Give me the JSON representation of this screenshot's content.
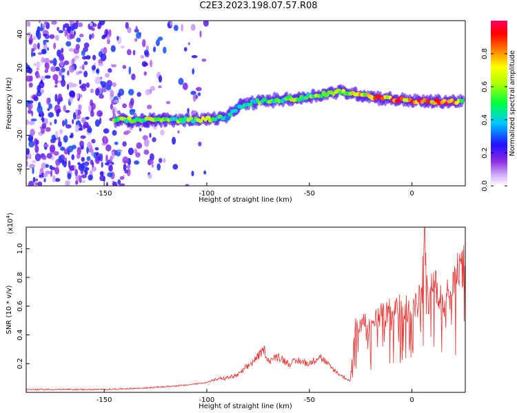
{
  "title": "C2E3.2023.198.07.57.R08",
  "colors": {
    "snr_line": "#e8322f",
    "points": "#7b2ff2"
  },
  "chart_data": [
    {
      "type": "heatmap",
      "xlabel": "Height of straight line (km)",
      "ylabel": "Frequency (Hz)",
      "xlim": [
        -188,
        26
      ],
      "ylim": [
        -50,
        48
      ],
      "x_ticks": [
        -150,
        -100,
        -50,
        0
      ],
      "x_tick_labels": [
        "-150",
        "-100",
        "-50",
        "0"
      ],
      "y_ticks": [
        -40,
        -20,
        0,
        20,
        40
      ],
      "y_tick_labels": [
        "-40",
        "-20",
        "0",
        "20",
        "40"
      ],
      "colorbar": {
        "label": "Normalized spectral amplitude",
        "range": [
          0,
          1
        ],
        "ticks": [
          0,
          0.2,
          0.4,
          0.6,
          0.8
        ],
        "tick_labels": [
          "0.0",
          "0.2",
          "0.4",
          "0.6",
          "0.8"
        ],
        "colormap": "rainbow"
      },
      "ridge": {
        "x": [
          -145,
          -130,
          -115,
          -100,
          -90,
          -85,
          -75,
          -65,
          -55,
          -45,
          -35,
          -25,
          -15,
          -5,
          5,
          15,
          25
        ],
        "y": [
          -11,
          -11,
          -11,
          -10.5,
          -9.5,
          -3,
          0,
          1,
          2,
          4,
          6,
          4,
          2,
          1,
          0,
          0,
          0
        ],
        "amplitude": [
          0.55,
          0.6,
          0.55,
          0.6,
          0.45,
          0.35,
          0.5,
          0.5,
          0.55,
          0.6,
          0.6,
          0.7,
          0.8,
          0.9,
          0.8,
          0.9,
          0.6
        ]
      },
      "noise_region": {
        "x_range": [
          -188,
          -100
        ],
        "amplitude_range": [
          0.05,
          0.3
        ]
      }
    },
    {
      "type": "line",
      "xlabel": "Height of straight line (km)",
      "ylabel": "SNR (10 * v/v)",
      "y_scale_label": "(x10",
      "y_scale_exponent": "4",
      "xlim": [
        -188,
        26
      ],
      "ylim": [
        0,
        1.15
      ],
      "x_ticks": [
        -150,
        -100,
        -50,
        0
      ],
      "x_tick_labels": [
        "-150",
        "-100",
        "-50",
        "0"
      ],
      "y_ticks": [
        0.2,
        0.4,
        0.6,
        0.8,
        1.0
      ],
      "y_tick_labels": [
        "0.2",
        "0.4",
        "0.6",
        "0.8",
        "1.0"
      ],
      "series": [
        {
          "x": [
            -188,
            -170,
            -150,
            -130,
            -120,
            -110,
            -100,
            -95,
            -90,
            -85,
            -80,
            -75,
            -72,
            -70,
            -65,
            -60,
            -55,
            -50,
            -45,
            -40,
            -35,
            -30,
            -28,
            -25,
            -20,
            -15,
            -10,
            -5,
            0,
            5,
            6,
            8,
            10,
            15,
            20,
            22,
            26
          ],
          "y": [
            0.02,
            0.02,
            0.02,
            0.03,
            0.04,
            0.05,
            0.07,
            0.09,
            0.1,
            0.12,
            0.18,
            0.25,
            0.3,
            0.22,
            0.25,
            0.2,
            0.22,
            0.2,
            0.25,
            0.18,
            0.12,
            0.08,
            0.45,
            0.5,
            0.45,
            0.55,
            0.55,
            0.6,
            0.55,
            0.7,
            1.15,
            0.55,
            0.8,
            0.6,
            0.75,
            0.85,
            0.88
          ]
        }
      ]
    }
  ]
}
